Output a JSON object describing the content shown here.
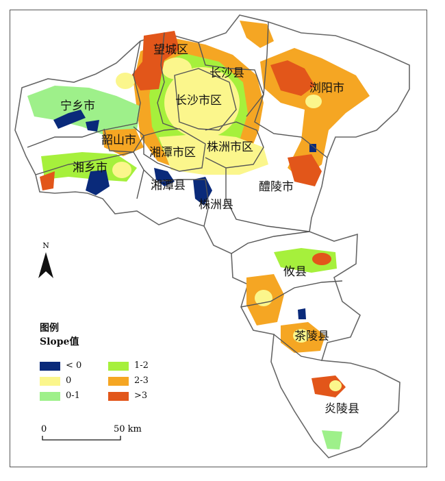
{
  "map": {
    "regions": [
      {
        "name": "望城区"
      },
      {
        "name": "长沙县"
      },
      {
        "name": "宁乡市"
      },
      {
        "name": "长沙市区"
      },
      {
        "name": "浏阳市"
      },
      {
        "name": "韶山市"
      },
      {
        "name": "湘潭市区"
      },
      {
        "name": "株洲市区"
      },
      {
        "name": "湘乡市"
      },
      {
        "name": "湘潭县"
      },
      {
        "name": "醴陵市"
      },
      {
        "name": "株洲县"
      },
      {
        "name": "攸县"
      },
      {
        "name": "茶陵县"
      },
      {
        "name": "炎陵县"
      }
    ],
    "north_label": "N"
  },
  "legend": {
    "title_line1": "图例",
    "title_line2": "Slope值",
    "items": [
      {
        "label": "< 0",
        "color": "#0a2a7a"
      },
      {
        "label": "1-2",
        "color": "#a6f03c"
      },
      {
        "label": "0",
        "color": "#fbf68c"
      },
      {
        "label": "2-3",
        "color": "#f5a623"
      },
      {
        "label": "0-1",
        "color": "#9ef08a"
      },
      {
        "label": ">3",
        "color": "#e2561a"
      }
    ]
  },
  "scale": {
    "start_label": "0",
    "end_label": "50 km"
  }
}
